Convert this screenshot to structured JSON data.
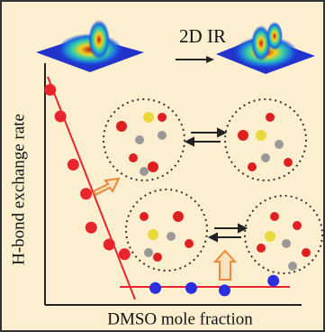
{
  "chart_data": {
    "type": "scatter",
    "annotation": "2D IR",
    "x_label": "DMSO mole fraction",
    "y_label": "H-bond exchange rate",
    "xlim": [
      0,
      1
    ],
    "ylim": [
      0,
      1
    ],
    "series": [
      {
        "color": "#e8252c",
        "x": [
          0.02,
          0.06,
          0.11,
          0.16,
          0.18,
          0.25,
          0.31
        ],
        "values": [
          0.89,
          0.78,
          0.58,
          0.46,
          0.32,
          0.25,
          0.21
        ]
      },
      {
        "color": "#2b2fe0",
        "x": [
          0.43,
          0.57,
          0.7,
          0.89
        ],
        "values": [
          0.07,
          0.07,
          0.06,
          0.1
        ]
      }
    ]
  }
}
